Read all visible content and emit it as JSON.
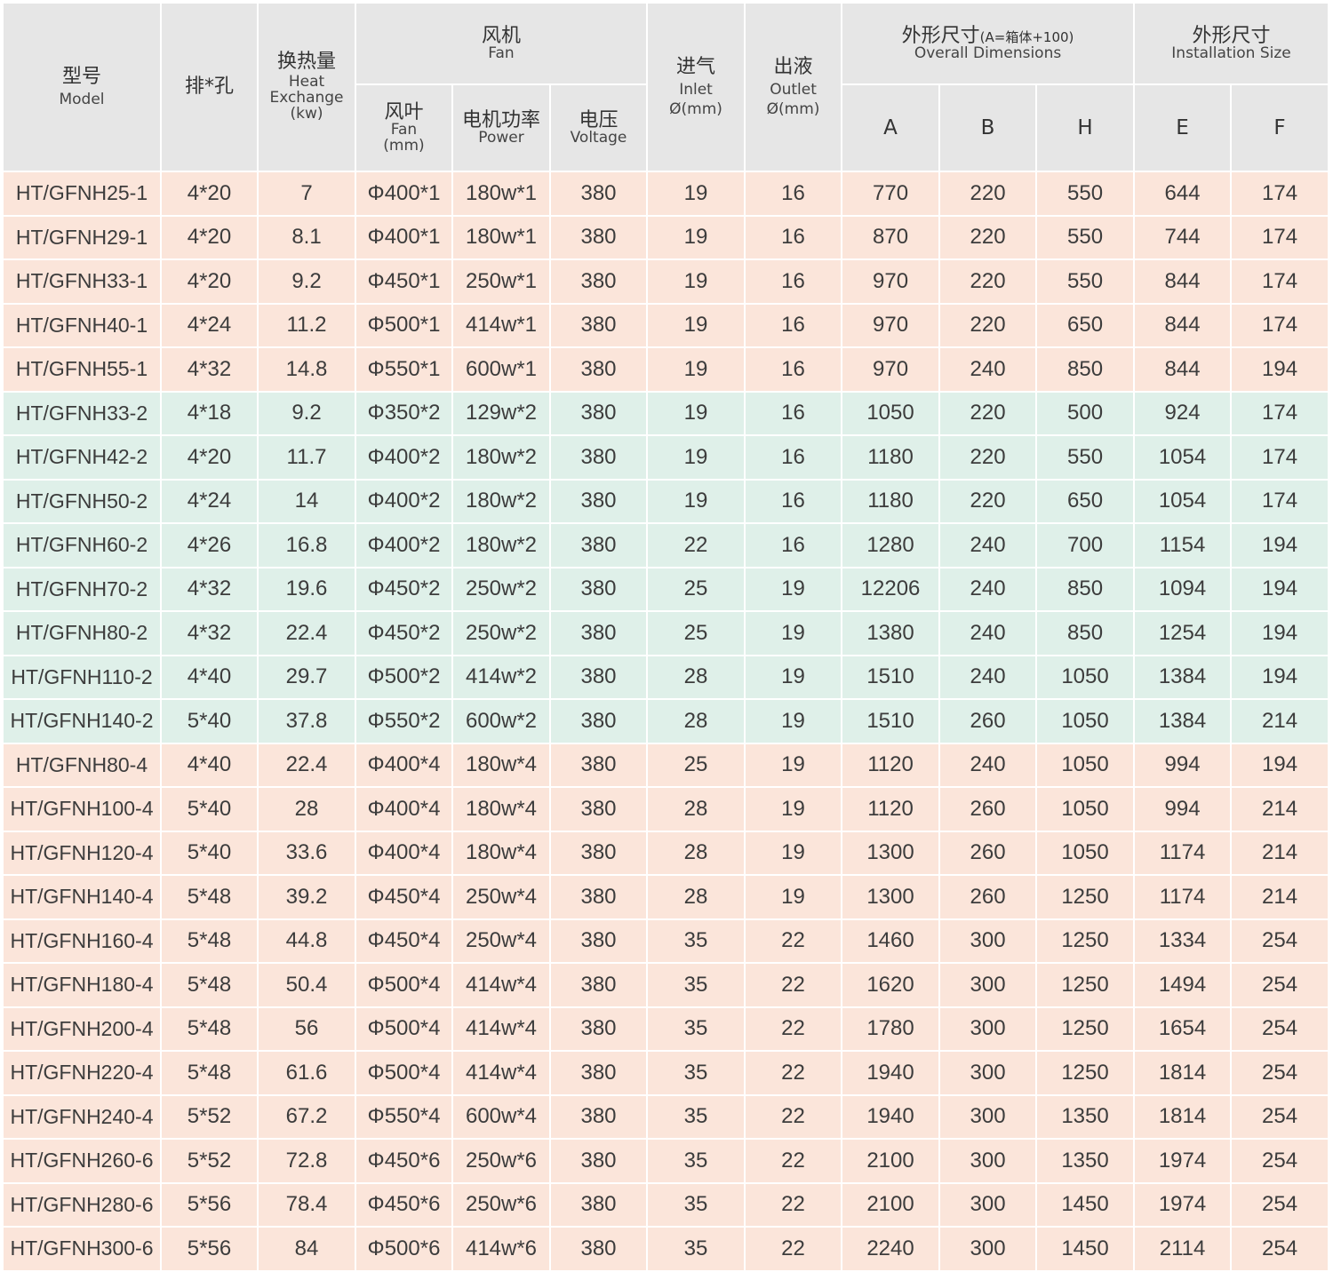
{
  "header": {
    "model_zh": "型号",
    "model_en": "Model",
    "rows_holes_zh": "排*孔",
    "heat_zh": "换热量",
    "heat_en": "Heat",
    "heat_en2": "Exchange",
    "heat_unit": "(kw)",
    "fan_zh": "风机",
    "fan_en": "Fan",
    "blade_zh": "风叶",
    "blade_en": "Fan",
    "blade_unit": "(mm)",
    "power_zh": "电机功率",
    "power_en": "Power",
    "voltage_zh": "电压",
    "voltage_en": "Voltage",
    "inlet_zh": "进气",
    "inlet_en": "Inlet",
    "inlet_unit": "Ø(mm)",
    "outlet_zh": "出液",
    "outlet_en": "Outlet",
    "outlet_unit": "Ø(mm)",
    "overall_zh": "外形尺寸",
    "overall_note": "(A=箱体+100)",
    "overall_en": "Overall Dimensions",
    "install_zh": "外形尺寸",
    "install_en": "Installation Size",
    "col_a": "A",
    "col_b": "B",
    "col_h": "H",
    "col_e": "E",
    "col_f": "F"
  },
  "colors": {
    "header_bg": "#e6e6e6",
    "group_pink": "#fbe5da",
    "group_green": "#dff0e9"
  },
  "rows": [
    {
      "group": "pink",
      "cells": [
        "HT/GFNH25-1",
        "4*20",
        "7",
        "Φ400*1",
        "180w*1",
        "380",
        "19",
        "16",
        "770",
        "220",
        "550",
        "644",
        "174"
      ]
    },
    {
      "group": "pink",
      "cells": [
        "HT/GFNH29-1",
        "4*20",
        "8.1",
        "Φ400*1",
        "180w*1",
        "380",
        "19",
        "16",
        "870",
        "220",
        "550",
        "744",
        "174"
      ]
    },
    {
      "group": "pink",
      "cells": [
        "HT/GFNH33-1",
        "4*20",
        "9.2",
        "Φ450*1",
        "250w*1",
        "380",
        "19",
        "16",
        "970",
        "220",
        "550",
        "844",
        "174"
      ]
    },
    {
      "group": "pink",
      "cells": [
        "HT/GFNH40-1",
        "4*24",
        "11.2",
        "Φ500*1",
        "414w*1",
        "380",
        "19",
        "16",
        "970",
        "220",
        "650",
        "844",
        "174"
      ]
    },
    {
      "group": "pink",
      "cells": [
        "HT/GFNH55-1",
        "4*32",
        "14.8",
        "Φ550*1",
        "600w*1",
        "380",
        "19",
        "16",
        "970",
        "240",
        "850",
        "844",
        "194"
      ]
    },
    {
      "group": "green",
      "cells": [
        "HT/GFNH33-2",
        "4*18",
        "9.2",
        "Φ350*2",
        "129w*2",
        "380",
        "19",
        "16",
        "1050",
        "220",
        "500",
        "924",
        "174"
      ]
    },
    {
      "group": "green",
      "cells": [
        "HT/GFNH42-2",
        "4*20",
        "11.7",
        "Φ400*2",
        "180w*2",
        "380",
        "19",
        "16",
        "1180",
        "220",
        "550",
        "1054",
        "174"
      ]
    },
    {
      "group": "green",
      "cells": [
        "HT/GFNH50-2",
        "4*24",
        "14",
        "Φ400*2",
        "180w*2",
        "380",
        "19",
        "16",
        "1180",
        "220",
        "650",
        "1054",
        "174"
      ]
    },
    {
      "group": "green",
      "cells": [
        "HT/GFNH60-2",
        "4*26",
        "16.8",
        "Φ400*2",
        "180w*2",
        "380",
        "22",
        "16",
        "1280",
        "240",
        "700",
        "1154",
        "194"
      ]
    },
    {
      "group": "green",
      "cells": [
        "HT/GFNH70-2",
        "4*32",
        "19.6",
        "Φ450*2",
        "250w*2",
        "380",
        "25",
        "19",
        "12206",
        "240",
        "850",
        "1094",
        "194"
      ]
    },
    {
      "group": "green",
      "cells": [
        "HT/GFNH80-2",
        "4*32",
        "22.4",
        "Φ450*2",
        "250w*2",
        "380",
        "25",
        "19",
        "1380",
        "240",
        "850",
        "1254",
        "194"
      ]
    },
    {
      "group": "green",
      "cells": [
        "HT/GFNH110-2",
        "4*40",
        "29.7",
        "Φ500*2",
        "414w*2",
        "380",
        "28",
        "19",
        "1510",
        "240",
        "1050",
        "1384",
        "194"
      ]
    },
    {
      "group": "green",
      "cells": [
        "HT/GFNH140-2",
        "5*40",
        "37.8",
        "Φ550*2",
        "600w*2",
        "380",
        "28",
        "19",
        "1510",
        "260",
        "1050",
        "1384",
        "214"
      ]
    },
    {
      "group": "pink",
      "cells": [
        "HT/GFNH80-4",
        "4*40",
        "22.4",
        "Φ400*4",
        "180w*4",
        "380",
        "25",
        "19",
        "1120",
        "240",
        "1050",
        "994",
        "194"
      ]
    },
    {
      "group": "pink",
      "cells": [
        "HT/GFNH100-4",
        "5*40",
        "28",
        "Φ400*4",
        "180w*4",
        "380",
        "28",
        "19",
        "1120",
        "260",
        "1050",
        "994",
        "214"
      ]
    },
    {
      "group": "pink",
      "cells": [
        "HT/GFNH120-4",
        "5*40",
        "33.6",
        "Φ400*4",
        "180w*4",
        "380",
        "28",
        "19",
        "1300",
        "260",
        "1050",
        "1174",
        "214"
      ]
    },
    {
      "group": "pink",
      "cells": [
        "HT/GFNH140-4",
        "5*48",
        "39.2",
        "Φ450*4",
        "250w*4",
        "380",
        "28",
        "19",
        "1300",
        "260",
        "1250",
        "1174",
        "214"
      ]
    },
    {
      "group": "pink",
      "cells": [
        "HT/GFNH160-4",
        "5*48",
        "44.8",
        "Φ450*4",
        "250w*4",
        "380",
        "35",
        "22",
        "1460",
        "300",
        "1250",
        "1334",
        "254"
      ]
    },
    {
      "group": "pink",
      "cells": [
        "HT/GFNH180-4",
        "5*48",
        "50.4",
        "Φ500*4",
        "414w*4",
        "380",
        "35",
        "22",
        "1620",
        "300",
        "1250",
        "1494",
        "254"
      ]
    },
    {
      "group": "pink",
      "cells": [
        "HT/GFNH200-4",
        "5*48",
        "56",
        "Φ500*4",
        "414w*4",
        "380",
        "35",
        "22",
        "1780",
        "300",
        "1250",
        "1654",
        "254"
      ]
    },
    {
      "group": "pink",
      "cells": [
        "HT/GFNH220-4",
        "5*48",
        "61.6",
        "Φ500*4",
        "414w*4",
        "380",
        "35",
        "22",
        "1940",
        "300",
        "1250",
        "1814",
        "254"
      ]
    },
    {
      "group": "pink",
      "cells": [
        "HT/GFNH240-4",
        "5*52",
        "67.2",
        "Φ550*4",
        "600w*4",
        "380",
        "35",
        "22",
        "1940",
        "300",
        "1350",
        "1814",
        "254"
      ]
    },
    {
      "group": "pink",
      "cells": [
        "HT/GFNH260-6",
        "5*52",
        "72.8",
        "Φ450*6",
        "250w*6",
        "380",
        "35",
        "22",
        "2100",
        "300",
        "1350",
        "1974",
        "254"
      ]
    },
    {
      "group": "pink",
      "cells": [
        "HT/GFNH280-6",
        "5*56",
        "78.4",
        "Φ450*6",
        "250w*6",
        "380",
        "35",
        "22",
        "2100",
        "300",
        "1450",
        "1974",
        "254"
      ]
    },
    {
      "group": "pink",
      "cells": [
        "HT/GFNH300-6",
        "5*56",
        "84",
        "Φ500*6",
        "414w*6",
        "380",
        "35",
        "22",
        "2240",
        "300",
        "1450",
        "2114",
        "254"
      ]
    }
  ]
}
